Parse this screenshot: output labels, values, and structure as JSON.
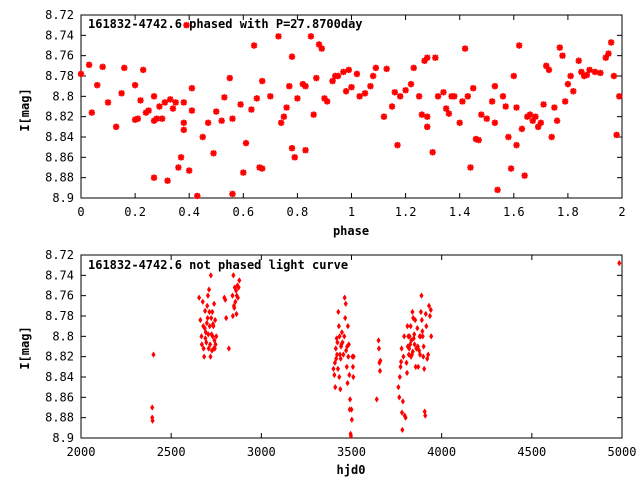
{
  "chart_data": [
    {
      "type": "scatter",
      "title": "161832-4742.6 phased with P=27.8700day",
      "xlabel": "phase",
      "ylabel": "I[mag]",
      "xlim": [
        0,
        2
      ],
      "ylim": [
        8.9,
        8.72
      ],
      "y_inverted": true,
      "xticks": [
        "0",
        "0.2",
        "0.4",
        "0.6",
        "0.8",
        "1",
        "1.2",
        "1.4",
        "1.6",
        "1.8",
        "2"
      ],
      "yticks": [
        "8.72",
        "8.74",
        "8.76",
        "8.78",
        "8.8",
        "8.82",
        "8.84",
        "8.86",
        "8.88",
        "8.9"
      ],
      "marker": "star",
      "color": "#ff0000",
      "points": [
        [
          0.0,
          8.778
        ],
        [
          0.03,
          8.769
        ],
        [
          0.04,
          8.816
        ],
        [
          0.06,
          8.789
        ],
        [
          0.08,
          8.771
        ],
        [
          0.1,
          8.806
        ],
        [
          0.13,
          8.83
        ],
        [
          0.15,
          8.797
        ],
        [
          0.16,
          8.772
        ],
        [
          0.2,
          8.789
        ],
        [
          0.2,
          8.823
        ],
        [
          0.21,
          8.822
        ],
        [
          0.22,
          8.804
        ],
        [
          0.23,
          8.774
        ],
        [
          0.24,
          8.816
        ],
        [
          0.25,
          8.814
        ],
        [
          0.27,
          8.8
        ],
        [
          0.27,
          8.824
        ],
        [
          0.27,
          8.88
        ],
        [
          0.28,
          8.822
        ],
        [
          0.29,
          8.81
        ],
        [
          0.3,
          8.822
        ],
        [
          0.31,
          8.806
        ],
        [
          0.32,
          8.883
        ],
        [
          0.33,
          8.803
        ],
        [
          0.34,
          8.812
        ],
        [
          0.35,
          8.806
        ],
        [
          0.36,
          8.87
        ],
        [
          0.37,
          8.86
        ],
        [
          0.38,
          8.806
        ],
        [
          0.38,
          8.826
        ],
        [
          0.38,
          8.833
        ],
        [
          0.39,
          8.73
        ],
        [
          0.4,
          8.873
        ],
        [
          0.41,
          8.792
        ],
        [
          0.41,
          8.814
        ],
        [
          0.43,
          8.898
        ],
        [
          0.45,
          8.84
        ],
        [
          0.47,
          8.826
        ],
        [
          0.49,
          8.856
        ],
        [
          0.5,
          8.815
        ],
        [
          0.52,
          8.824
        ],
        [
          0.53,
          8.801
        ],
        [
          0.55,
          8.782
        ],
        [
          0.56,
          8.896
        ],
        [
          0.56,
          8.822
        ],
        [
          0.59,
          8.808
        ],
        [
          0.6,
          8.875
        ],
        [
          0.61,
          8.846
        ],
        [
          0.63,
          8.813
        ],
        [
          0.64,
          8.75
        ],
        [
          0.65,
          8.802
        ],
        [
          0.66,
          8.87
        ],
        [
          0.67,
          8.871
        ],
        [
          0.67,
          8.785
        ],
        [
          0.7,
          8.8
        ],
        [
          0.73,
          8.741
        ],
        [
          0.74,
          8.826
        ],
        [
          0.75,
          8.82
        ],
        [
          0.76,
          8.811
        ],
        [
          0.77,
          8.79
        ],
        [
          0.78,
          8.761
        ],
        [
          0.78,
          8.851
        ],
        [
          0.79,
          8.86
        ],
        [
          0.8,
          8.802
        ],
        [
          0.82,
          8.788
        ],
        [
          0.83,
          8.853
        ],
        [
          0.83,
          8.79
        ],
        [
          0.85,
          8.741
        ],
        [
          0.86,
          8.818
        ],
        [
          0.87,
          8.782
        ],
        [
          0.88,
          8.749
        ],
        [
          0.89,
          8.753
        ],
        [
          0.9,
          8.802
        ],
        [
          0.91,
          8.805
        ],
        [
          0.93,
          8.785
        ],
        [
          0.94,
          8.78
        ],
        [
          0.95,
          8.78
        ],
        [
          0.97,
          8.776
        ],
        [
          0.98,
          8.795
        ],
        [
          0.99,
          8.774
        ],
        [
          1.0,
          8.791
        ],
        [
          1.02,
          8.778
        ],
        [
          1.03,
          8.8
        ],
        [
          1.05,
          8.797
        ],
        [
          1.07,
          8.79
        ],
        [
          1.08,
          8.78
        ],
        [
          1.09,
          8.772
        ],
        [
          1.12,
          8.82
        ],
        [
          1.13,
          8.773
        ],
        [
          1.15,
          8.81
        ],
        [
          1.16,
          8.796
        ],
        [
          1.17,
          8.848
        ],
        [
          1.18,
          8.8
        ],
        [
          1.2,
          8.794
        ],
        [
          1.22,
          8.788
        ],
        [
          1.23,
          8.772
        ],
        [
          1.25,
          8.8
        ],
        [
          1.26,
          8.818
        ],
        [
          1.27,
          8.765
        ],
        [
          1.28,
          8.82
        ],
        [
          1.28,
          8.83
        ],
        [
          1.28,
          8.762
        ],
        [
          1.3,
          8.855
        ],
        [
          1.31,
          8.762
        ],
        [
          1.32,
          8.8
        ],
        [
          1.34,
          8.796
        ],
        [
          1.35,
          8.812
        ],
        [
          1.36,
          8.817
        ],
        [
          1.37,
          8.8
        ],
        [
          1.38,
          8.8
        ],
        [
          1.4,
          8.826
        ],
        [
          1.41,
          8.805
        ],
        [
          1.42,
          8.753
        ],
        [
          1.43,
          8.8
        ],
        [
          1.44,
          8.87
        ],
        [
          1.45,
          8.792
        ],
        [
          1.46,
          8.842
        ],
        [
          1.47,
          8.843
        ],
        [
          1.48,
          8.818
        ],
        [
          1.5,
          8.822
        ],
        [
          1.52,
          8.805
        ],
        [
          1.53,
          8.826
        ],
        [
          1.53,
          8.79
        ],
        [
          1.54,
          8.892
        ],
        [
          1.56,
          8.8
        ],
        [
          1.57,
          8.81
        ],
        [
          1.58,
          8.84
        ],
        [
          1.59,
          8.871
        ],
        [
          1.6,
          8.78
        ],
        [
          1.61,
          8.811
        ],
        [
          1.61,
          8.848
        ],
        [
          1.62,
          8.75
        ],
        [
          1.63,
          8.832
        ],
        [
          1.64,
          8.878
        ],
        [
          1.65,
          8.82
        ],
        [
          1.66,
          8.818
        ],
        [
          1.67,
          8.824
        ],
        [
          1.68,
          8.82
        ],
        [
          1.69,
          8.83
        ],
        [
          1.7,
          8.826
        ],
        [
          1.71,
          8.808
        ],
        [
          1.72,
          8.77
        ],
        [
          1.73,
          8.774
        ],
        [
          1.74,
          8.84
        ],
        [
          1.75,
          8.811
        ],
        [
          1.76,
          8.824
        ],
        [
          1.77,
          8.752
        ],
        [
          1.78,
          8.76
        ],
        [
          1.79,
          8.805
        ],
        [
          1.8,
          8.788
        ],
        [
          1.81,
          8.78
        ],
        [
          1.82,
          8.795
        ],
        [
          1.84,
          8.765
        ],
        [
          1.85,
          8.776
        ],
        [
          1.86,
          8.78
        ],
        [
          1.87,
          8.779
        ],
        [
          1.88,
          8.774
        ],
        [
          1.9,
          8.776
        ],
        [
          1.92,
          8.777
        ],
        [
          1.94,
          8.762
        ],
        [
          1.95,
          8.758
        ],
        [
          1.96,
          8.747
        ],
        [
          1.97,
          8.78
        ],
        [
          1.98,
          8.838
        ],
        [
          1.99,
          8.8
        ]
      ]
    },
    {
      "type": "scatter",
      "title": "161832-4742.6 not phased light curve",
      "xlabel": "hjd0",
      "ylabel": "I[mag]",
      "xlim": [
        2000,
        5000
      ],
      "ylim": [
        8.9,
        8.72
      ],
      "y_inverted": true,
      "xticks": [
        "2000",
        "2500",
        "3000",
        "3500",
        "4000",
        "4500",
        "5000"
      ],
      "yticks": [
        "8.72",
        "8.74",
        "8.76",
        "8.78",
        "8.8",
        "8.82",
        "8.84",
        "8.86",
        "8.88",
        "8.9"
      ],
      "marker": "diamond",
      "color": "#ff0000",
      "points": [
        [
          2395,
          8.87
        ],
        [
          2395,
          8.88
        ],
        [
          2397,
          8.883
        ],
        [
          2402,
          8.818
        ],
        [
          2655,
          8.762
        ],
        [
          2662,
          8.784
        ],
        [
          2668,
          8.8
        ],
        [
          2670,
          8.808
        ],
        [
          2675,
          8.766
        ],
        [
          2678,
          8.79
        ],
        [
          2680,
          8.812
        ],
        [
          2683,
          8.82
        ],
        [
          2686,
          8.792
        ],
        [
          2688,
          8.775
        ],
        [
          2690,
          8.802
        ],
        [
          2692,
          8.796
        ],
        [
          2695,
          8.806
        ],
        [
          2698,
          8.787
        ],
        [
          2700,
          8.77
        ],
        [
          2702,
          8.782
        ],
        [
          2704,
          8.76
        ],
        [
          2706,
          8.798
        ],
        [
          2708,
          8.812
        ],
        [
          2710,
          8.754
        ],
        [
          2712,
          8.776
        ],
        [
          2714,
          8.79
        ],
        [
          2716,
          8.808
        ],
        [
          2718,
          8.82
        ],
        [
          2720,
          8.74
        ],
        [
          2722,
          8.782
        ],
        [
          2724,
          8.798
        ],
        [
          2726,
          8.814
        ],
        [
          2728,
          8.776
        ],
        [
          2730,
          8.8
        ],
        [
          2732,
          8.788
        ],
        [
          2734,
          8.79
        ],
        [
          2736,
          8.812
        ],
        [
          2738,
          8.768
        ],
        [
          2740,
          8.804
        ],
        [
          2742,
          8.812
        ],
        [
          2744,
          8.784
        ],
        [
          2746,
          8.808
        ],
        [
          2750,
          8.8
        ],
        [
          2795,
          8.762
        ],
        [
          2800,
          8.764
        ],
        [
          2805,
          8.782
        ],
        [
          2820,
          8.812
        ],
        [
          2840,
          8.76
        ],
        [
          2842,
          8.78
        ],
        [
          2845,
          8.74
        ],
        [
          2848,
          8.77
        ],
        [
          2850,
          8.772
        ],
        [
          2853,
          8.752
        ],
        [
          2856,
          8.766
        ],
        [
          2860,
          8.755
        ],
        [
          2862,
          8.778
        ],
        [
          2864,
          8.76
        ],
        [
          2868,
          8.75
        ],
        [
          2870,
          8.762
        ],
        [
          2874,
          8.752
        ],
        [
          2878,
          8.745
        ],
        [
          3400,
          8.832
        ],
        [
          3405,
          8.838
        ],
        [
          3408,
          8.826
        ],
        [
          3410,
          8.85
        ],
        [
          3413,
          8.812
        ],
        [
          3415,
          8.822
        ],
        [
          3418,
          8.802
        ],
        [
          3420,
          8.818
        ],
        [
          3422,
          8.806
        ],
        [
          3425,
          8.832
        ],
        [
          3427,
          8.776
        ],
        [
          3430,
          8.79
        ],
        [
          3432,
          8.84
        ],
        [
          3434,
          8.8
        ],
        [
          3436,
          8.818
        ],
        [
          3438,
          8.852
        ],
        [
          3440,
          8.822
        ],
        [
          3442,
          8.81
        ],
        [
          3444,
          8.808
        ],
        [
          3447,
          8.796
        ],
        [
          3450,
          8.806
        ],
        [
          3455,
          8.818
        ],
        [
          3460,
          8.8
        ],
        [
          3462,
          8.762
        ],
        [
          3465,
          8.782
        ],
        [
          3468,
          8.768
        ],
        [
          3470,
          8.814
        ],
        [
          3474,
          8.83
        ],
        [
          3476,
          8.81
        ],
        [
          3478,
          8.846
        ],
        [
          3480,
          8.79
        ],
        [
          3482,
          8.82
        ],
        [
          3485,
          8.808
        ],
        [
          3488,
          8.838
        ],
        [
          3490,
          8.872
        ],
        [
          3492,
          8.862
        ],
        [
          3495,
          8.896
        ],
        [
          3497,
          8.898
        ],
        [
          3500,
          8.872
        ],
        [
          3502,
          8.882
        ],
        [
          3505,
          8.82
        ],
        [
          3508,
          8.83
        ],
        [
          3510,
          8.84
        ],
        [
          3512,
          8.82
        ],
        [
          3640,
          8.862
        ],
        [
          3650,
          8.804
        ],
        [
          3652,
          8.812
        ],
        [
          3655,
          8.826
        ],
        [
          3658,
          8.834
        ],
        [
          3660,
          8.824
        ],
        [
          3760,
          8.85
        ],
        [
          3765,
          8.86
        ],
        [
          3768,
          8.84
        ],
        [
          3772,
          8.83
        ],
        [
          3775,
          8.825
        ],
        [
          3778,
          8.812
        ],
        [
          3780,
          8.875
        ],
        [
          3782,
          8.892
        ],
        [
          3785,
          8.864
        ],
        [
          3788,
          8.82
        ],
        [
          3792,
          8.8
        ],
        [
          3795,
          8.878
        ],
        [
          3800,
          8.88
        ],
        [
          3805,
          8.826
        ],
        [
          3808,
          8.836
        ],
        [
          3810,
          8.79
        ],
        [
          3812,
          8.81
        ],
        [
          3815,
          8.8
        ],
        [
          3818,
          8.818
        ],
        [
          3820,
          8.812
        ],
        [
          3822,
          8.8
        ],
        [
          3825,
          8.808
        ],
        [
          3828,
          8.79
        ],
        [
          3830,
          8.82
        ],
        [
          3832,
          8.804
        ],
        [
          3835,
          8.818
        ],
        [
          3838,
          8.776
        ],
        [
          3840,
          8.815
        ],
        [
          3842,
          8.782
        ],
        [
          3845,
          8.802
        ],
        [
          3848,
          8.798
        ],
        [
          3850,
          8.808
        ],
        [
          3853,
          8.784
        ],
        [
          3856,
          8.83
        ],
        [
          3860,
          8.812
        ],
        [
          3865,
          8.792
        ],
        [
          3868,
          8.81
        ],
        [
          3870,
          8.83
        ],
        [
          3875,
          8.814
        ],
        [
          3878,
          8.8
        ],
        [
          3880,
          8.818
        ],
        [
          3882,
          8.8
        ],
        [
          3885,
          8.776
        ],
        [
          3888,
          8.76
        ],
        [
          3890,
          8.784
        ],
        [
          3893,
          8.795
        ],
        [
          3895,
          8.8
        ],
        [
          3898,
          8.82
        ],
        [
          3900,
          8.81
        ],
        [
          3903,
          8.832
        ],
        [
          3906,
          8.874
        ],
        [
          3909,
          8.878
        ],
        [
          3912,
          8.778
        ],
        [
          3915,
          8.79
        ],
        [
          3920,
          8.822
        ],
        [
          3925,
          8.818
        ],
        [
          3930,
          8.77
        ],
        [
          3935,
          8.78
        ],
        [
          3940,
          8.774
        ],
        [
          3942,
          8.8
        ],
        [
          4985,
          8.728
        ]
      ]
    }
  ]
}
